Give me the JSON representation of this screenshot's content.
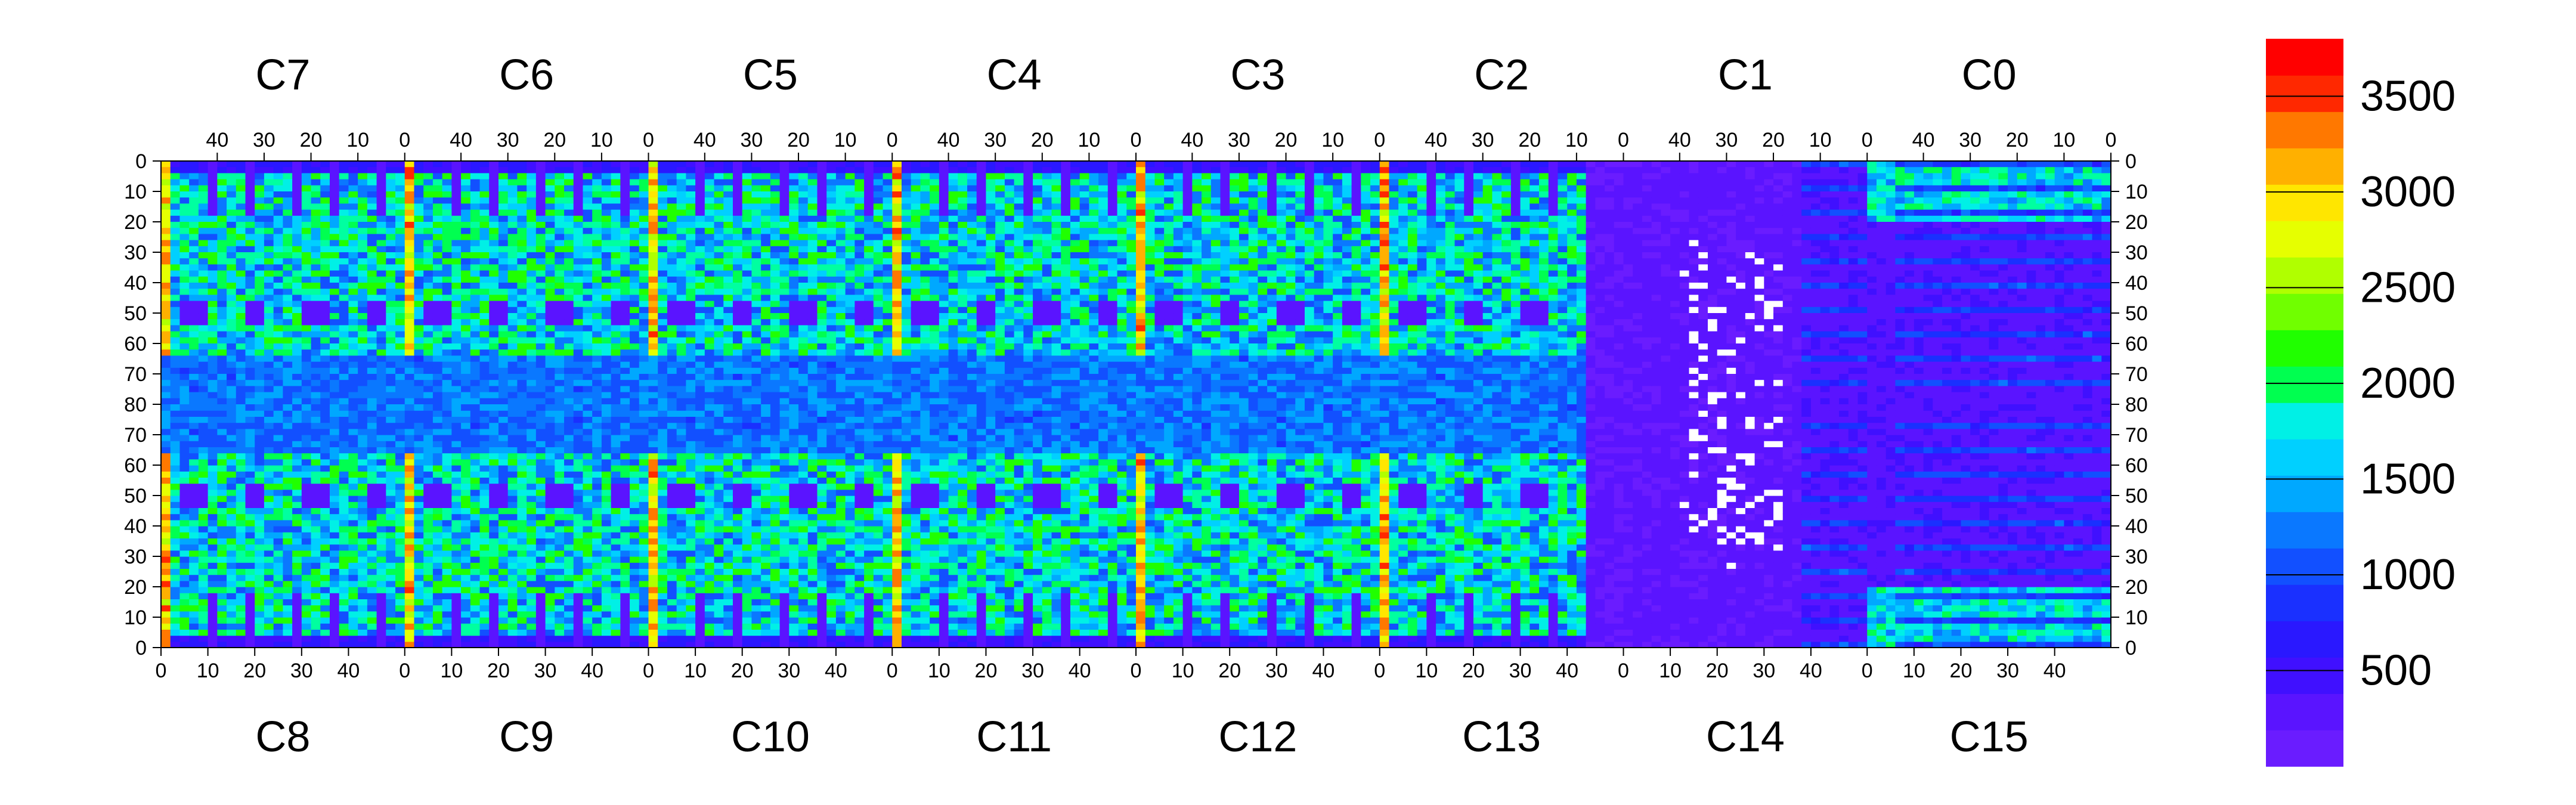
{
  "chart_data": {
    "type": "heatmap",
    "title": "",
    "xlabel": "",
    "ylabel": "",
    "chips_top": [
      "C7",
      "C6",
      "C5",
      "C4",
      "C3",
      "C2",
      "C1",
      "C0"
    ],
    "chips_bottom": [
      "C8",
      "C9",
      "C10",
      "C11",
      "C12",
      "C13",
      "C14",
      "C15"
    ],
    "chip_columns": 52,
    "rows_per_half": 80,
    "x_ticks_top": [
      40,
      30,
      20,
      10,
      0
    ],
    "x_ticks_bottom": [
      0,
      10,
      20,
      30,
      40
    ],
    "y_ticks_upper": [
      0,
      10,
      20,
      30,
      40,
      50,
      60,
      70,
      80
    ],
    "y_ticks_lower": [
      70,
      60,
      50,
      40,
      30,
      20,
      10,
      0
    ],
    "colorbar": {
      "range": [
        0,
        3800
      ],
      "ticks": [
        500,
        1000,
        1500,
        2000,
        2500,
        3000,
        3500
      ],
      "tick_labels": [
        "500",
        "1000",
        "1500",
        "2000",
        "2500",
        "3000",
        "3500"
      ],
      "levels": 20,
      "palette": [
        "#6a1cff",
        "#5a14ff",
        "#4010ff",
        "#2a18ff",
        "#1a30ff",
        "#1250ff",
        "#0a78ff",
        "#00a8ff",
        "#00d0ff",
        "#00f0e6",
        "#00ffa0",
        "#00ff50",
        "#20ff00",
        "#70ff00",
        "#b0ff00",
        "#e6ff00",
        "#ffe600",
        "#ffb000",
        "#ff7800",
        "#ff2800",
        "#ff0000"
      ]
    },
    "features": {
      "hot_columns_chip_edge": 3500,
      "square_pad_value": 250,
      "dead_chip_value": 150,
      "dense_region_value": 1500,
      "uniform_region_value": 900,
      "background_value": 250
    }
  }
}
